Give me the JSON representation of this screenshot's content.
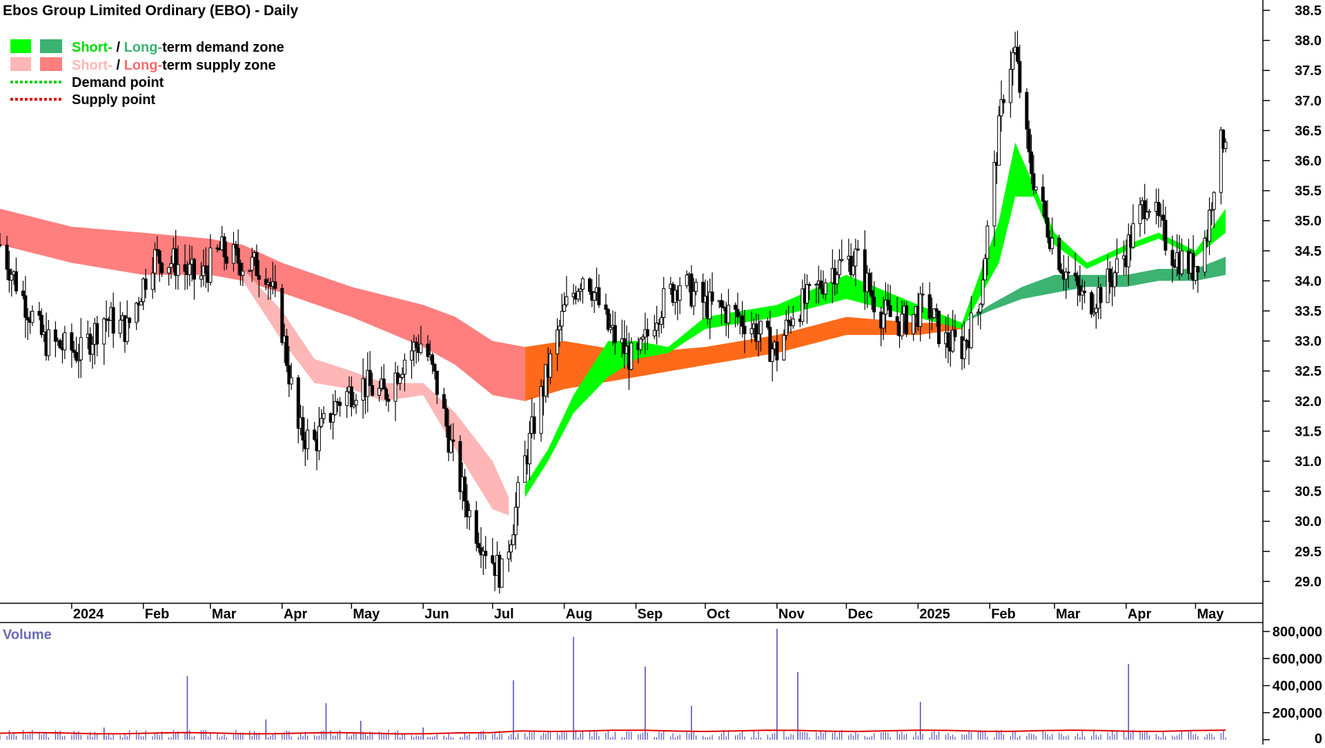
{
  "title": "Ebos Group Limited Ordinary (EBO) - Daily",
  "legend": {
    "demand": {
      "short": "Short-",
      "sep": " / ",
      "long": "Long-",
      "rest": "term demand zone"
    },
    "supply": {
      "short": "Short-",
      "sep": " / ",
      "long": "Long-",
      "rest": "term supply zone"
    },
    "demand_point": "Demand point",
    "supply_point": "Supply point"
  },
  "colors": {
    "short_demand": "#00ff00",
    "long_demand": "#3cb371",
    "short_supply": "#ffb6b6",
    "long_supply": "#ff7f7f",
    "overlap": "#ff6a1a",
    "demand_point": "#00cc00",
    "supply_point": "#e00000",
    "candle": "#000000",
    "volume_bar": "#5050c0",
    "volume_avg": "#e00000",
    "volume_title": "#6b6bb5"
  },
  "price_axis": {
    "ticks": [
      "38.5",
      "38.0",
      "37.5",
      "37.0",
      "36.5",
      "36.0",
      "35.5",
      "35.0",
      "34.5",
      "34.0",
      "33.5",
      "33.0",
      "32.5",
      "32.0",
      "31.5",
      "31.0",
      "30.5",
      "30.0",
      "29.5",
      "29.0"
    ]
  },
  "months": [
    "2024",
    "Feb",
    "Mar",
    "Apr",
    "May",
    "Jun",
    "Jul",
    "Aug",
    "Sep",
    "Oct",
    "Nov",
    "Dec",
    "2025",
    "Feb",
    "Mar",
    "Apr",
    "May"
  ],
  "volume": {
    "title": "Volume",
    "ticks": [
      "800,000",
      "600,000",
      "400,000",
      "200,000",
      "0"
    ]
  },
  "chart_data": {
    "type": "line",
    "title": "Ebos Group Limited Ordinary (EBO) - Daily",
    "ylim": [
      28.6,
      38.6
    ],
    "x_range": [
      "2023-12-01",
      "2025-05-14"
    ],
    "series": [
      {
        "name": "Price",
        "x": [
          "2023-12-01",
          "2023-12-10",
          "2023-12-20",
          "2024-01-05",
          "2024-01-15",
          "2024-01-25",
          "2024-02-05",
          "2024-02-15",
          "2024-02-25",
          "2024-03-05",
          "2024-03-15",
          "2024-03-25",
          "2024-04-01",
          "2024-04-08",
          "2024-04-15",
          "2024-04-25",
          "2024-05-05",
          "2024-05-15",
          "2024-05-25",
          "2024-06-01",
          "2024-06-08",
          "2024-06-15",
          "2024-06-22",
          "2024-06-29",
          "2024-07-05",
          "2024-07-10",
          "2024-07-15",
          "2024-07-20",
          "2024-07-25",
          "2024-08-01",
          "2024-08-10",
          "2024-08-20",
          "2024-09-01",
          "2024-09-10",
          "2024-09-20",
          "2024-10-01",
          "2024-10-10",
          "2024-10-20",
          "2024-11-01",
          "2024-11-08",
          "2024-11-15",
          "2024-11-25",
          "2024-12-05",
          "2024-12-15",
          "2024-12-25",
          "2025-01-05",
          "2025-01-12",
          "2025-01-20",
          "2025-01-27",
          "2025-02-03",
          "2025-02-08",
          "2025-02-12",
          "2025-02-18",
          "2025-02-25",
          "2025-03-05",
          "2025-03-15",
          "2025-03-25",
          "2025-04-01",
          "2025-04-10",
          "2025-04-20",
          "2025-04-30",
          "2025-05-06",
          "2025-05-10",
          "2025-05-14"
        ],
        "values": [
          34.6,
          33.8,
          33.0,
          32.8,
          33.4,
          33.2,
          34.4,
          34.3,
          34.0,
          34.5,
          34.3,
          34.2,
          33.2,
          31.5,
          31.3,
          32.0,
          32.3,
          32.1,
          32.8,
          33.0,
          32.1,
          30.9,
          30.0,
          29.5,
          29.1,
          30.0,
          31.0,
          31.8,
          32.5,
          33.5,
          34.2,
          33.2,
          32.6,
          33.5,
          34.0,
          33.6,
          33.5,
          33.3,
          32.8,
          33.5,
          33.7,
          34.2,
          34.4,
          33.5,
          33.3,
          33.6,
          33.0,
          32.9,
          33.5,
          35.8,
          37.5,
          37.8,
          36.0,
          35.0,
          34.2,
          33.6,
          34.0,
          34.5,
          35.4,
          34.5,
          34.2,
          34.8,
          36.0,
          36.5
        ]
      },
      {
        "name": "Volume",
        "x": [
          "2024-01-15",
          "2024-02-20",
          "2024-03-25",
          "2024-04-20",
          "2024-05-05",
          "2024-06-01",
          "2024-07-10",
          "2024-08-05",
          "2024-09-05",
          "2024-09-25",
          "2024-11-01",
          "2024-11-10",
          "2025-01-02",
          "2025-04-02"
        ],
        "values": [
          90000,
          470000,
          150000,
          270000,
          140000,
          90000,
          440000,
          760000,
          540000,
          250000,
          820000,
          500000,
          280000,
          560000
        ]
      }
    ],
    "bands": [
      {
        "name": "Long-term supply zone",
        "x": [
          "2023-12-01",
          "2024-01-01",
          "2024-02-01",
          "2024-03-01",
          "2024-03-15",
          "2024-04-01",
          "2024-05-01",
          "2024-06-01",
          "2024-06-15",
          "2024-07-01",
          "2024-07-15"
        ],
        "upper": [
          35.2,
          34.9,
          34.8,
          34.7,
          34.6,
          34.3,
          33.9,
          33.6,
          33.4,
          33.0,
          32.9
        ],
        "lower": [
          34.6,
          34.3,
          34.1,
          34.1,
          34.0,
          33.8,
          33.4,
          32.9,
          32.6,
          32.1,
          32.0
        ]
      },
      {
        "name": "Short-term supply zone",
        "x": [
          "2024-03-15",
          "2024-04-01",
          "2024-04-15",
          "2024-05-01",
          "2024-05-15",
          "2024-06-01",
          "2024-06-15",
          "2024-07-01",
          "2024-07-08"
        ],
        "upper": [
          34.2,
          33.5,
          32.7,
          32.5,
          32.3,
          32.3,
          31.8,
          31.0,
          30.4
        ],
        "lower": [
          34.0,
          33.0,
          32.3,
          32.2,
          32.0,
          32.1,
          31.2,
          30.2,
          30.1
        ]
      },
      {
        "name": "Short-term demand zone",
        "x": [
          "2024-07-15",
          "2024-07-25",
          "2024-08-05",
          "2024-08-20",
          "2024-09-01",
          "2024-09-15",
          "2024-10-01",
          "2024-11-01",
          "2024-12-01",
          "2025-01-20",
          "2025-02-05",
          "2025-02-12",
          "2025-02-20",
          "2025-03-01",
          "2025-03-15",
          "2025-04-01",
          "2025-04-15",
          "2025-05-01",
          "2025-05-14"
        ],
        "upper": [
          30.6,
          31.2,
          32.1,
          33.0,
          33.0,
          32.9,
          33.4,
          33.6,
          34.1,
          33.3,
          35.0,
          36.3,
          35.6,
          34.8,
          34.3,
          34.6,
          34.8,
          34.5,
          35.2
        ],
        "lower": [
          30.4,
          31.0,
          31.8,
          32.4,
          32.7,
          32.8,
          33.2,
          33.4,
          33.7,
          33.2,
          34.3,
          35.4,
          35.4,
          34.6,
          34.2,
          34.5,
          34.7,
          34.4,
          34.8
        ]
      },
      {
        "name": "Long-term demand zone",
        "x": [
          "2025-01-20",
          "2025-02-01",
          "2025-02-15",
          "2025-03-01",
          "2025-03-15",
          "2025-04-01",
          "2025-04-15",
          "2025-05-01",
          "2025-05-14"
        ],
        "upper": [
          33.3,
          33.6,
          33.9,
          34.1,
          34.1,
          34.1,
          34.2,
          34.2,
          34.4
        ],
        "lower": [
          33.3,
          33.5,
          33.7,
          33.8,
          33.9,
          33.9,
          34.0,
          34.0,
          34.1
        ]
      }
    ],
    "grid": false,
    "legend_position": "top-left",
    "volume_ylim": [
      0,
      850000
    ]
  }
}
